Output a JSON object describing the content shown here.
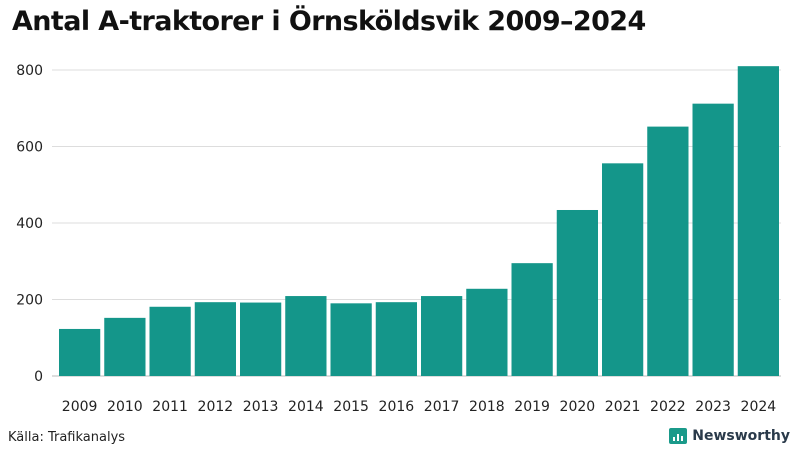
{
  "chart_data": {
    "type": "bar",
    "title": "Antal A-traktorer i Örnsköldsvik 2009–2024",
    "categories": [
      "2009",
      "2010",
      "2011",
      "2012",
      "2013",
      "2014",
      "2015",
      "2016",
      "2017",
      "2018",
      "2019",
      "2020",
      "2021",
      "2022",
      "2023",
      "2024"
    ],
    "values": [
      123,
      152,
      181,
      193,
      192,
      209,
      190,
      193,
      209,
      228,
      295,
      434,
      556,
      652,
      712,
      810
    ],
    "ylim": [
      0,
      800
    ],
    "yticks": [
      0,
      200,
      400,
      600,
      800
    ],
    "xlabel": "",
    "ylabel": "",
    "grid": true,
    "bar_color": "#14968a"
  },
  "footer": {
    "source": "Källa: Trafikanalys",
    "brand": "Newsworthy"
  },
  "colors": {
    "accent": "#14968a",
    "grid": "#dddddd"
  }
}
